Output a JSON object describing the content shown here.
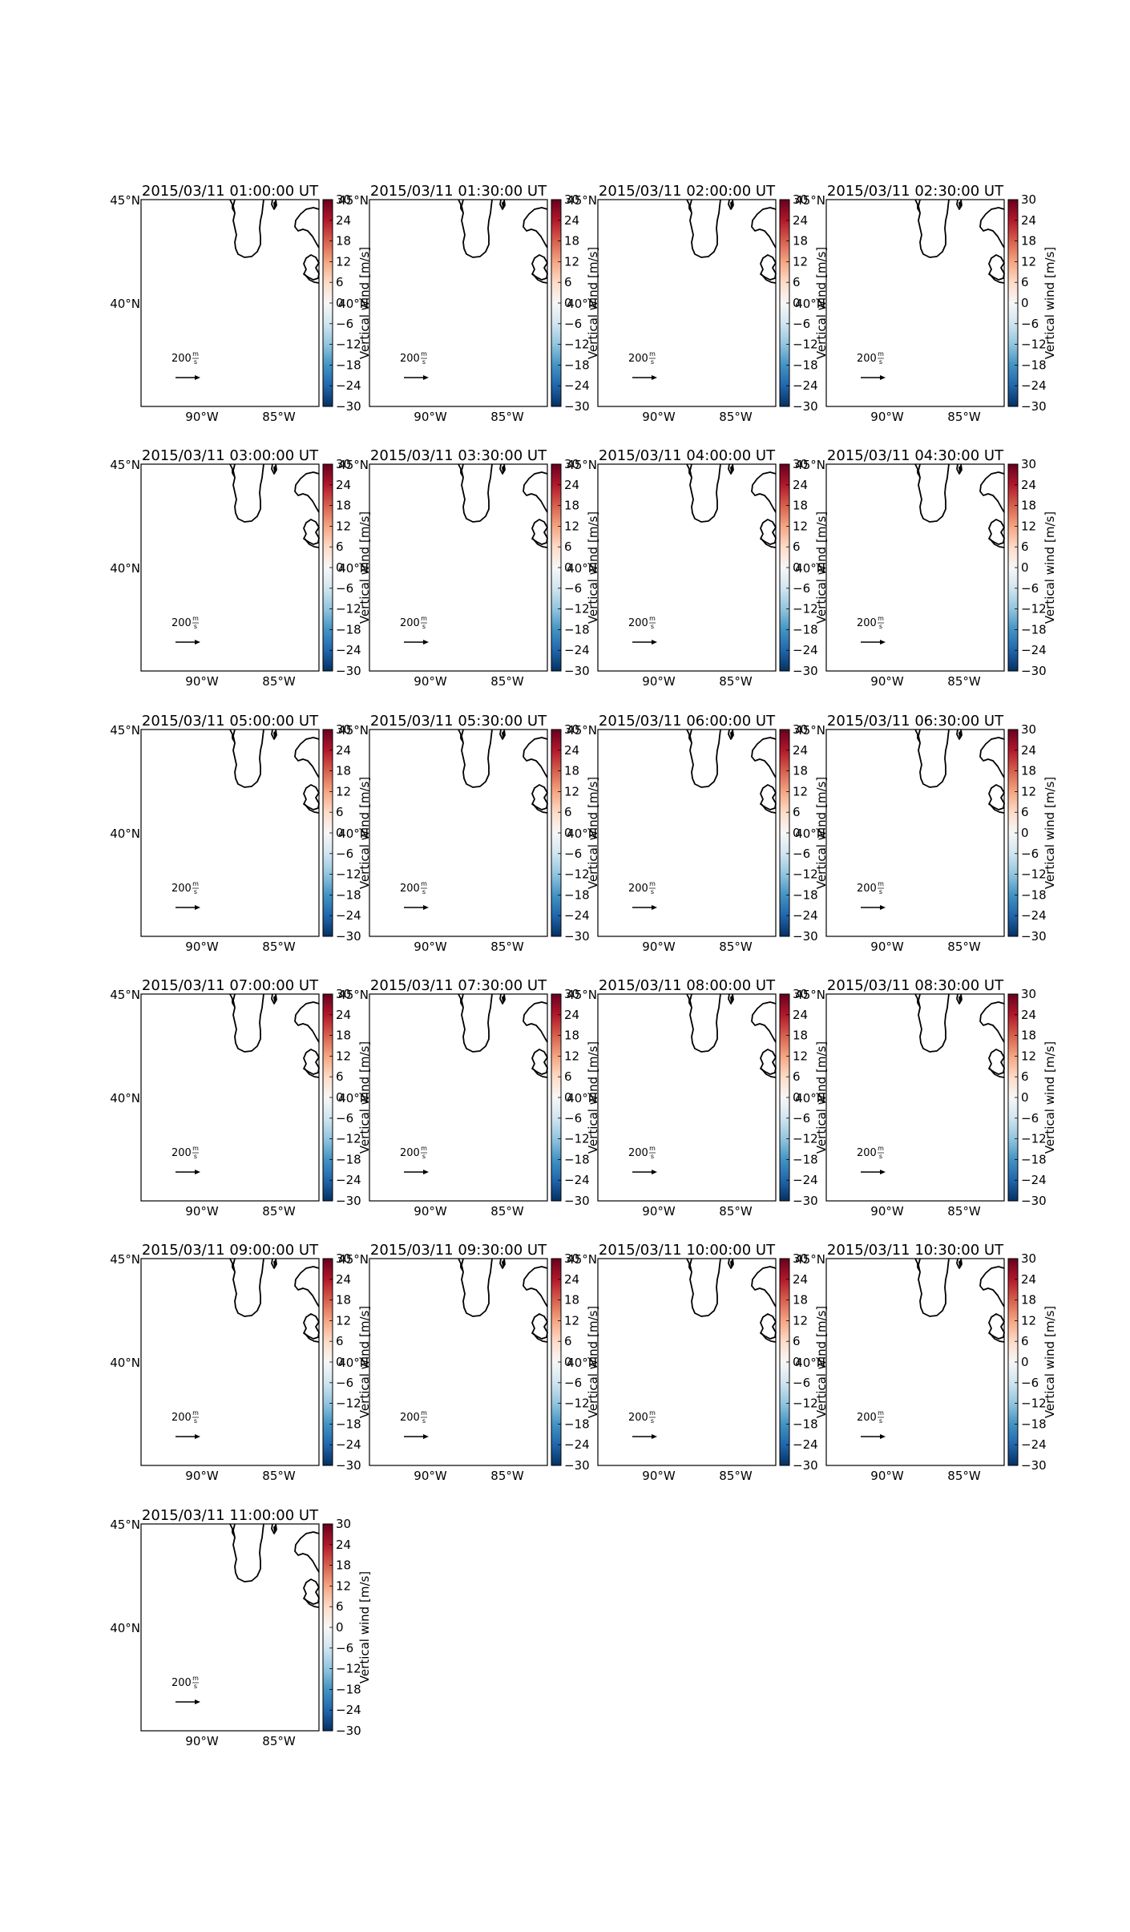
{
  "figure": {
    "cbar_label": "Vertical wind [m/s]",
    "lat_labels": [
      "45°N",
      "40°N"
    ],
    "lon_labels": [
      "90°W",
      "85°W"
    ],
    "colorbar_ticks": [
      "30",
      "24",
      "18",
      "12",
      "6",
      "0",
      "−6",
      "−12",
      "−18",
      "−24",
      "−30"
    ],
    "colorbar_colors": [
      "#67001f",
      "#b2182b",
      "#d6604d",
      "#f4a582",
      "#fddbc7",
      "#f7f7f7",
      "#d1e5f0",
      "#92c5de",
      "#4393c3",
      "#2166ac",
      "#053061"
    ],
    "ref_arrow_value": "200",
    "ref_arrow_unit_num": "m",
    "ref_arrow_unit_den": "s"
  },
  "panels": [
    {
      "title": "2015/03/11 01:00:00 UT"
    },
    {
      "title": "2015/03/11 01:30:00 UT"
    },
    {
      "title": "2015/03/11 02:00:00 UT"
    },
    {
      "title": "2015/03/11 02:30:00 UT"
    },
    {
      "title": "2015/03/11 03:00:00 UT"
    },
    {
      "title": "2015/03/11 03:30:00 UT"
    },
    {
      "title": "2015/03/11 04:00:00 UT"
    },
    {
      "title": "2015/03/11 04:30:00 UT"
    },
    {
      "title": "2015/03/11 05:00:00 UT"
    },
    {
      "title": "2015/03/11 05:30:00 UT"
    },
    {
      "title": "2015/03/11 06:00:00 UT"
    },
    {
      "title": "2015/03/11 06:30:00 UT"
    },
    {
      "title": "2015/03/11 07:00:00 UT"
    },
    {
      "title": "2015/03/11 07:30:00 UT"
    },
    {
      "title": "2015/03/11 08:00:00 UT"
    },
    {
      "title": "2015/03/11 08:30:00 UT"
    },
    {
      "title": "2015/03/11 09:00:00 UT"
    },
    {
      "title": "2015/03/11 09:30:00 UT"
    },
    {
      "title": "2015/03/11 10:00:00 UT"
    },
    {
      "title": "2015/03/11 10:30:00 UT"
    },
    {
      "title": "2015/03/11 11:00:00 UT"
    }
  ]
}
